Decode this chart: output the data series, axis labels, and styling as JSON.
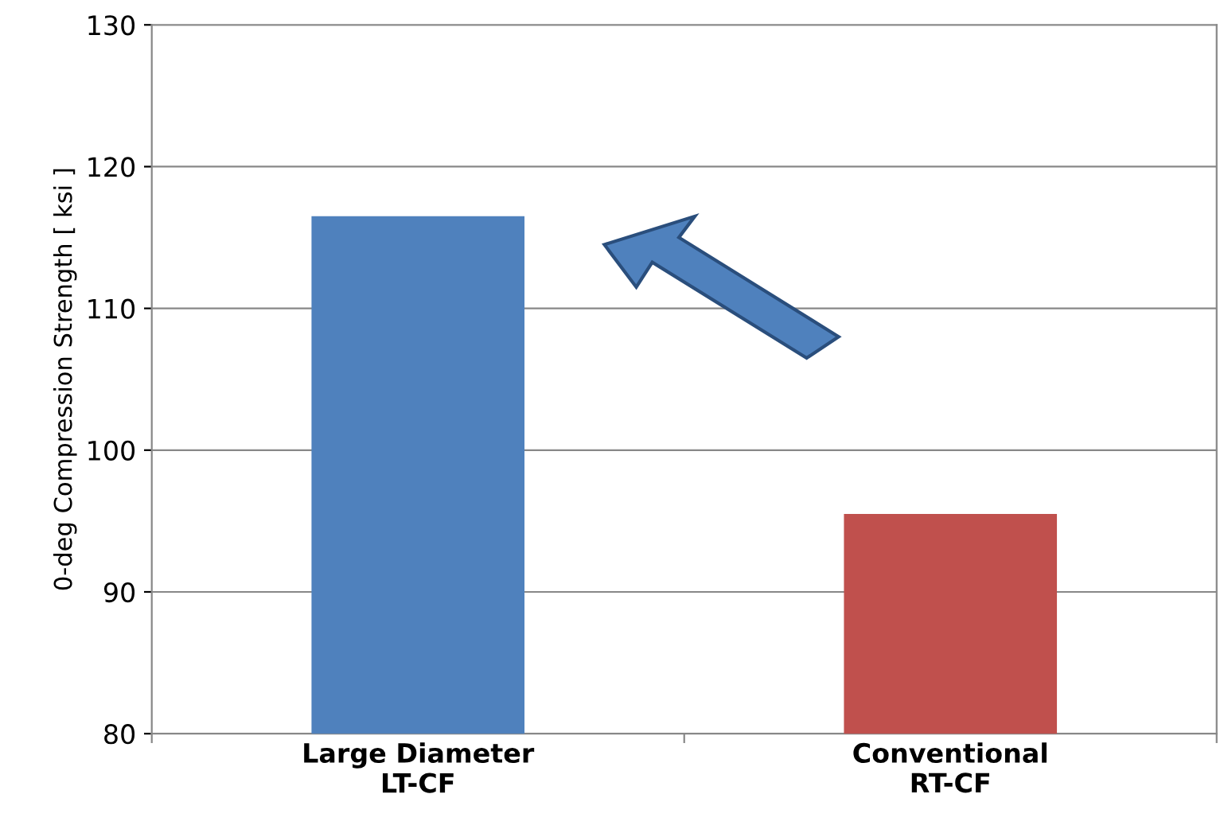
{
  "chart_data": {
    "type": "bar",
    "ylabel": "0-deg Compression Strength [ ksi ]",
    "categories": [
      "Large Diameter\nLT-CF",
      "Conventional\nRT-CF"
    ],
    "values": [
      116.5,
      95.5
    ],
    "colors": [
      "#4f81bd",
      "#c0504d"
    ],
    "ylim": [
      80,
      130
    ],
    "yticks": [
      80,
      90,
      100,
      110,
      120,
      130
    ],
    "grid": "y"
  }
}
